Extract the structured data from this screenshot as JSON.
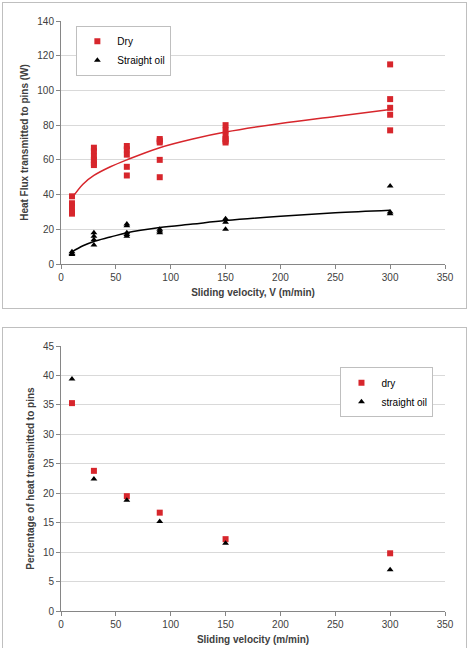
{
  "chart_data": [
    {
      "type": "scatter",
      "x_label": "Sliding velocity, V (m/min)",
      "y_label": "Heat Flux transmitted to pins (W)",
      "xlim": [
        0,
        350
      ],
      "xticks": [
        0,
        50,
        100,
        150,
        200,
        250,
        300,
        350
      ],
      "ylim": [
        0,
        140
      ],
      "yticks": [
        0,
        20,
        40,
        60,
        80,
        100,
        120,
        140
      ],
      "grid": true,
      "legend": "top left",
      "series": [
        {
          "name": "Dry",
          "color": "#d7262c",
          "marker": "square",
          "x": [
            10,
            10,
            10,
            10,
            10,
            30,
            30,
            30,
            30,
            30,
            30,
            60,
            60,
            60,
            60,
            60,
            90,
            90,
            90,
            90,
            90,
            150,
            150,
            150,
            150,
            150,
            150,
            300,
            300,
            300,
            300,
            300
          ],
          "values": [
            39,
            35,
            33,
            30,
            29,
            67,
            65,
            62,
            60,
            58,
            57,
            68,
            66,
            63,
            56,
            51,
            72,
            71,
            70,
            60,
            50,
            80,
            77,
            74,
            72,
            71,
            70,
            115,
            95,
            90,
            86,
            77
          ],
          "trend": {
            "x": [
              10,
              20,
              30,
              45,
              60,
              90,
              120,
              150,
              200,
              250,
              300
            ],
            "values": [
              38,
              46,
              51,
              56,
              60,
              67,
              72,
              76,
              81,
              85,
              89
            ],
            "line_style": "solid"
          }
        },
        {
          "name": "Straight oil",
          "color": "#000000",
          "marker": "triangle-up",
          "x": [
            10,
            10,
            10,
            30,
            30,
            30,
            30,
            60,
            60,
            60,
            60,
            60,
            90,
            90,
            90,
            150,
            150,
            150,
            300,
            300,
            300
          ],
          "values": [
            7,
            6,
            5.5,
            18,
            16,
            14,
            11,
            23,
            22,
            18,
            17,
            16,
            20,
            19,
            18,
            26,
            24,
            20,
            45,
            30,
            29
          ],
          "trend": {
            "x": [
              10,
              20,
              30,
              45,
              60,
              90,
              120,
              150,
              200,
              250,
              300
            ],
            "values": [
              7,
              10.5,
              13,
              15.5,
              18,
              21,
              23,
              25,
              27.5,
              29.5,
              31
            ],
            "line_style": "solid"
          }
        }
      ]
    },
    {
      "type": "scatter",
      "x_label": "Sliding velocity (m/min)",
      "y_label": "Percentage of heat transmitted to pins",
      "xlim": [
        0,
        350
      ],
      "xticks": [
        0,
        50,
        100,
        150,
        200,
        250,
        300,
        350
      ],
      "ylim": [
        0,
        45
      ],
      "yticks": [
        0,
        5,
        10,
        15,
        20,
        25,
        30,
        35,
        40,
        45
      ],
      "grid": true,
      "legend": "top right",
      "series": [
        {
          "name": "dry",
          "color": "#d7262c",
          "marker": "square",
          "x": [
            10,
            30,
            60,
            90,
            150,
            300
          ],
          "values": [
            35.3,
            23.8,
            19.5,
            16.7,
            12.2,
            9.8
          ]
        },
        {
          "name": "straight oil",
          "color": "#000000",
          "marker": "triangle-up",
          "x": [
            10,
            30,
            60,
            90,
            150,
            300
          ],
          "values": [
            39.4,
            22.4,
            18.8,
            15.2,
            11.5,
            7
          ]
        }
      ]
    }
  ]
}
